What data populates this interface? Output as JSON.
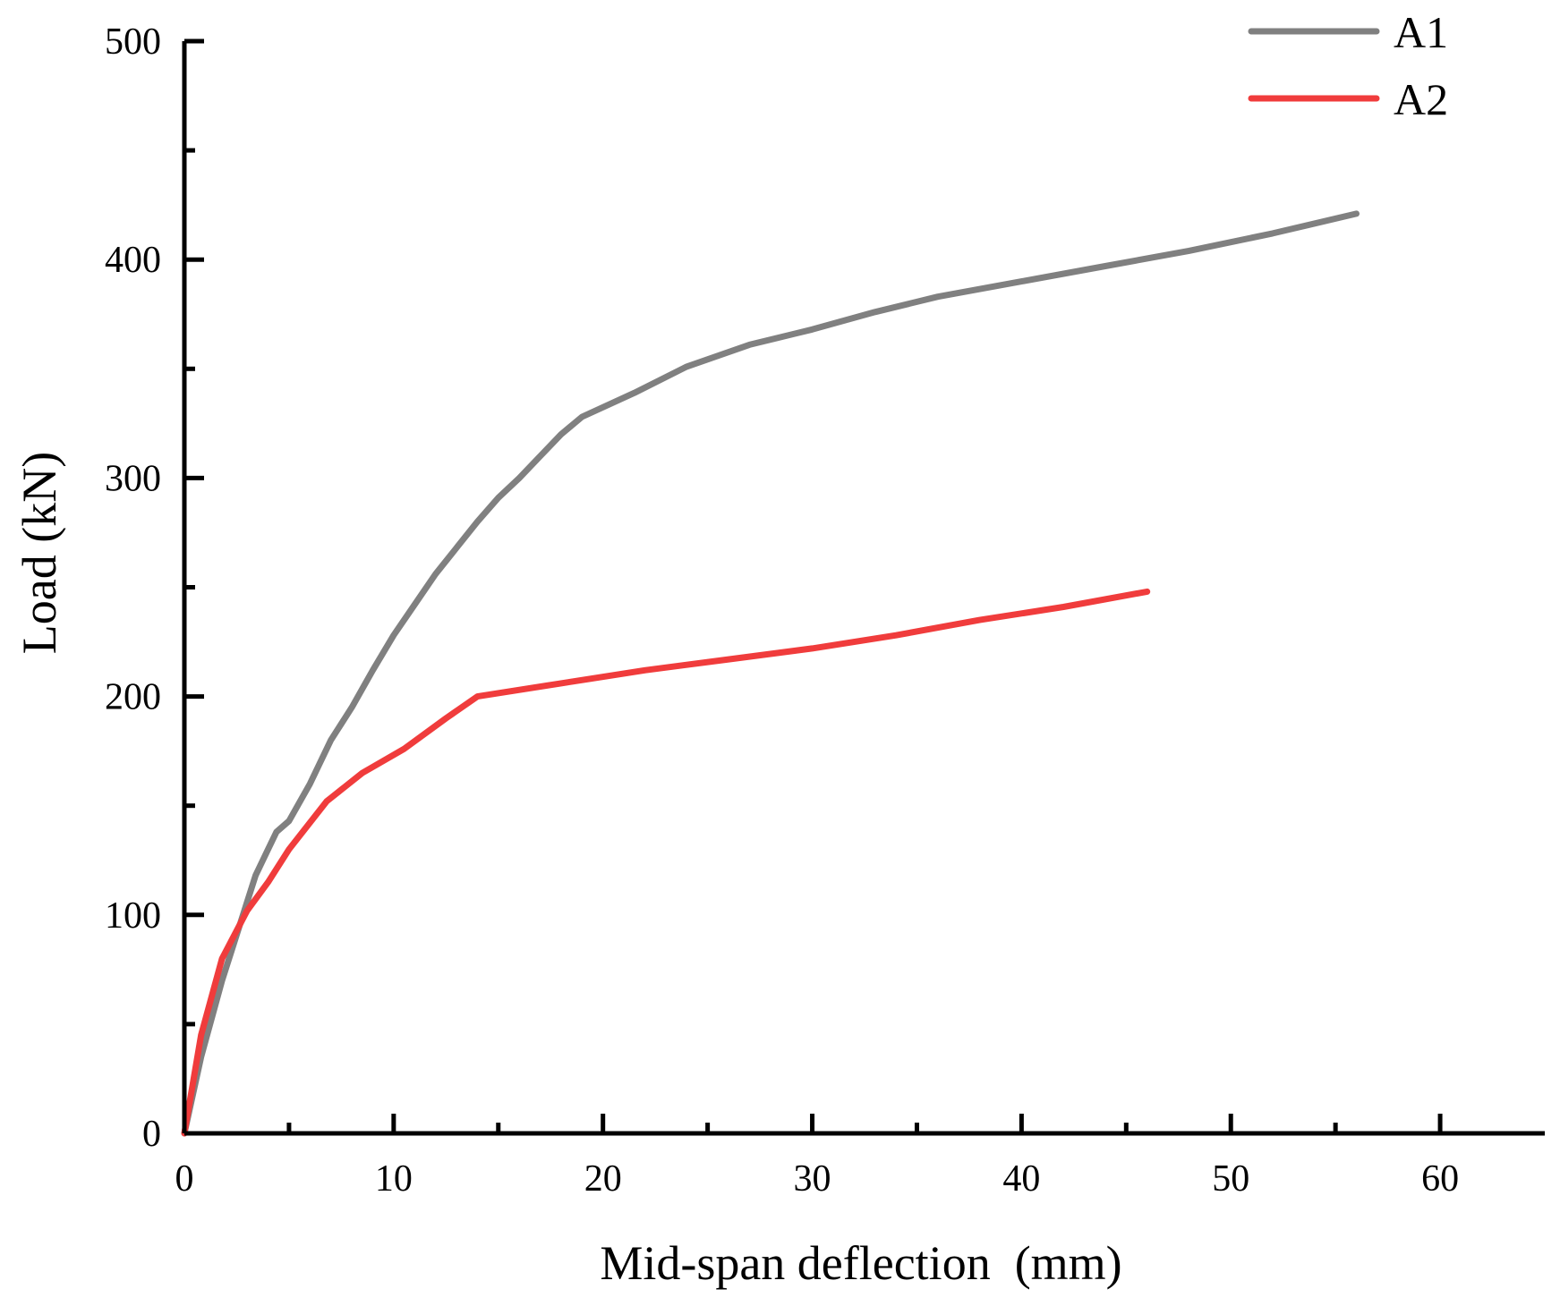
{
  "chart_data": {
    "type": "line",
    "title": "",
    "xlabel": "Mid-span deflection  (mm)",
    "ylabel": "Load (kN)",
    "xlim": [
      0,
      65
    ],
    "ylim": [
      0,
      500
    ],
    "x_major_ticks": [
      0,
      10,
      20,
      30,
      40,
      50,
      60
    ],
    "x_minor_ticks": [
      5,
      15,
      25,
      35,
      45,
      55
    ],
    "y_major_ticks": [
      0,
      100,
      200,
      300,
      400,
      500
    ],
    "y_minor_ticks": [
      50,
      150,
      250,
      350,
      450
    ],
    "x_tick_labels": [
      "0",
      "10",
      "20",
      "30",
      "40",
      "50",
      "60"
    ],
    "y_tick_labels": [
      "0",
      "100",
      "200",
      "300",
      "400",
      "500"
    ],
    "grid": false,
    "legend_position": "top-right",
    "series": [
      {
        "name": "A1",
        "color": "#808080",
        "x": [
          0,
          0.8,
          1.8,
          2.8,
          3.4,
          4.0,
          4.4,
          5.0,
          6.0,
          7.0,
          8.0,
          9.0,
          10.0,
          11.0,
          12.0,
          13.0,
          14.0,
          15.0,
          16.0,
          17.0,
          18.0,
          19.0,
          21.5,
          24.0,
          27.0,
          30.0,
          33.0,
          36.0,
          40.0,
          44.0,
          48.0,
          52.0,
          56.0
        ],
        "y": [
          0,
          35,
          70,
          100,
          118,
          130,
          138,
          143,
          160,
          180,
          195,
          212,
          228,
          242,
          256,
          268,
          280,
          291,
          300,
          310,
          320,
          328,
          339,
          351,
          361,
          368,
          376,
          383,
          390,
          397,
          404,
          412,
          421
        ]
      },
      {
        "name": "A2",
        "color": "#f03c3c",
        "x": [
          0,
          0.8,
          1.8,
          3.0,
          4.0,
          5.0,
          6.8,
          8.5,
          10.5,
          12.5,
          14.0,
          18.0,
          22.0,
          26.0,
          30.0,
          34.0,
          38.0,
          42.0,
          46.0
        ],
        "y": [
          0,
          45,
          80,
          102,
          115,
          130,
          152,
          165,
          176,
          190,
          200,
          206,
          212,
          217,
          222,
          228,
          235,
          241,
          248
        ]
      }
    ]
  }
}
